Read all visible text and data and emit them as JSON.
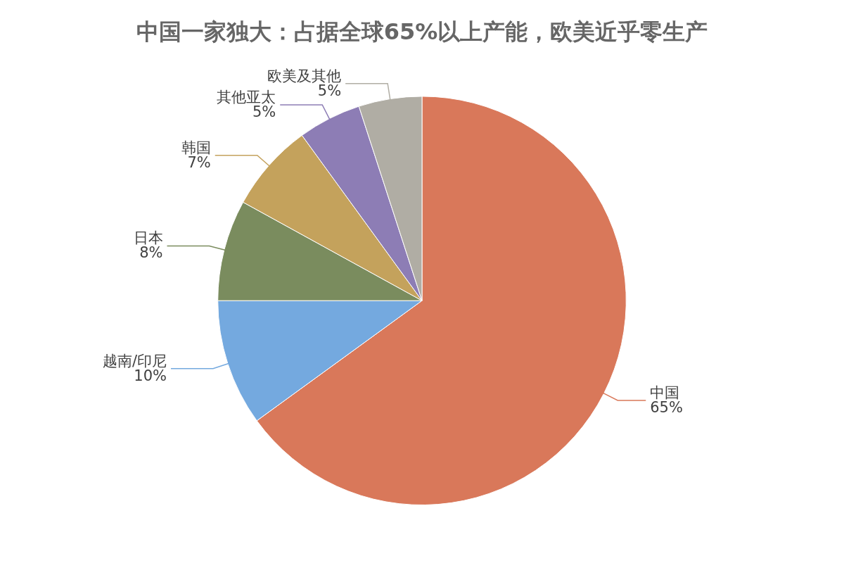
{
  "chart_data": {
    "type": "pie",
    "title": "中国一家独大：占据全球65%以上产能，欧美近乎零生产",
    "categories": [
      "中国",
      "越南/印尼",
      "日本",
      "韩国",
      "其他亚太",
      "欧美及其他"
    ],
    "values": [
      65,
      10,
      8,
      7,
      5,
      5
    ],
    "value_labels": [
      "65%",
      "10%",
      "8%",
      "7%",
      "5%",
      "5%"
    ],
    "colors": [
      "#d9785a",
      "#74a9df",
      "#7a8c5e",
      "#c4a25c",
      "#8d7db5",
      "#b0ada4"
    ],
    "legend": false
  }
}
